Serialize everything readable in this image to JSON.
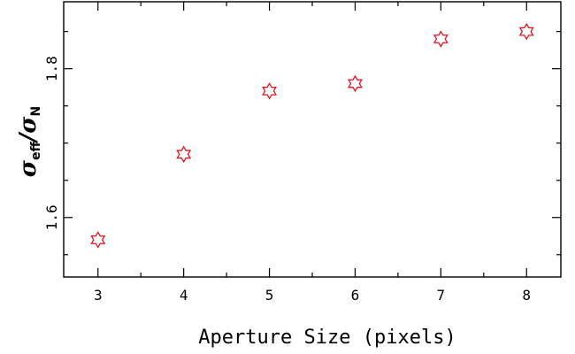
{
  "chart_data": {
    "type": "scatter",
    "x": [
      3,
      4,
      5,
      6,
      7,
      8
    ],
    "y": [
      1.57,
      1.685,
      1.77,
      1.78,
      1.84,
      1.85
    ],
    "xlabel": "Aperture Size (pixels)",
    "ylabel": {
      "sigma_1": "σ",
      "sub_1": "eff",
      "slash": "/",
      "sigma_2": "σ",
      "sub_2": "N"
    },
    "xlim": [
      2.6,
      8.4
    ],
    "ylim": [
      1.52,
      1.89
    ],
    "x_ticks": [
      3,
      4,
      5,
      6,
      7,
      8
    ],
    "x_tick_labels": [
      "3",
      "4",
      "5",
      "6",
      "7",
      "8"
    ],
    "y_major_ticks": [
      1.6,
      1.8
    ],
    "y_tick_labels": [
      "1.6",
      "1.8"
    ],
    "marker": "six-pointed-star",
    "marker_color": "#e8141c",
    "grid": false,
    "legend": "none"
  }
}
